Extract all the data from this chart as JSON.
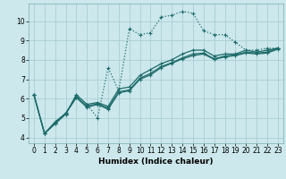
{
  "xlabel": "Humidex (Indice chaleur)",
  "bg_color": "#cce8ec",
  "grid_color": "#aacdd4",
  "line_color": "#1e6b6b",
  "xlim": [
    -0.5,
    23.5
  ],
  "ylim": [
    3.7,
    10.9
  ],
  "xticks": [
    0,
    1,
    2,
    3,
    4,
    5,
    6,
    7,
    8,
    9,
    10,
    11,
    12,
    13,
    14,
    15,
    16,
    17,
    18,
    19,
    20,
    21,
    22,
    23
  ],
  "yticks": [
    4,
    5,
    6,
    7,
    8,
    9,
    10
  ],
  "line1_x": [
    0,
    1,
    2,
    3,
    4,
    5,
    6,
    7,
    8,
    9,
    10,
    11,
    12,
    13,
    14,
    15,
    16,
    17,
    18,
    19,
    20,
    21,
    22,
    23
  ],
  "line1_y": [
    6.2,
    4.2,
    4.7,
    5.2,
    6.2,
    5.7,
    5.0,
    7.6,
    6.4,
    9.6,
    9.3,
    9.4,
    10.2,
    10.3,
    10.5,
    10.4,
    9.5,
    9.3,
    9.3,
    8.9,
    8.5,
    8.5,
    8.6,
    8.6
  ],
  "line2_x": [
    0,
    1,
    2,
    3,
    4,
    5,
    6,
    7,
    8,
    9,
    10,
    11,
    12,
    13,
    14,
    15,
    16,
    17,
    18,
    19,
    20,
    21,
    22,
    23
  ],
  "line2_y": [
    6.2,
    4.2,
    4.7,
    5.2,
    6.2,
    5.7,
    5.8,
    5.6,
    6.5,
    6.6,
    7.2,
    7.5,
    7.8,
    8.0,
    8.3,
    8.5,
    8.5,
    8.2,
    8.3,
    8.3,
    8.5,
    8.4,
    8.5,
    8.6
  ],
  "line3_x": [
    0,
    1,
    2,
    3,
    4,
    5,
    6,
    7,
    8,
    9,
    10,
    11,
    12,
    13,
    14,
    15,
    16,
    17,
    18,
    19,
    20,
    21,
    22,
    23
  ],
  "line3_y": [
    6.2,
    4.2,
    4.8,
    5.25,
    6.1,
    5.6,
    5.75,
    5.5,
    6.35,
    6.45,
    7.05,
    7.3,
    7.65,
    7.85,
    8.1,
    8.3,
    8.35,
    8.05,
    8.2,
    8.25,
    8.4,
    8.35,
    8.4,
    8.6
  ],
  "line4_x": [
    0,
    1,
    2,
    3,
    4,
    5,
    6,
    7,
    8,
    9,
    10,
    11,
    12,
    13,
    14,
    15,
    16,
    17,
    18,
    19,
    20,
    21,
    22,
    23
  ],
  "line4_y": [
    6.2,
    4.2,
    4.75,
    5.22,
    6.05,
    5.55,
    5.7,
    5.45,
    6.3,
    6.4,
    7.0,
    7.22,
    7.6,
    7.82,
    8.05,
    8.22,
    8.3,
    8.02,
    8.15,
    8.22,
    8.35,
    8.3,
    8.35,
    8.55
  ]
}
